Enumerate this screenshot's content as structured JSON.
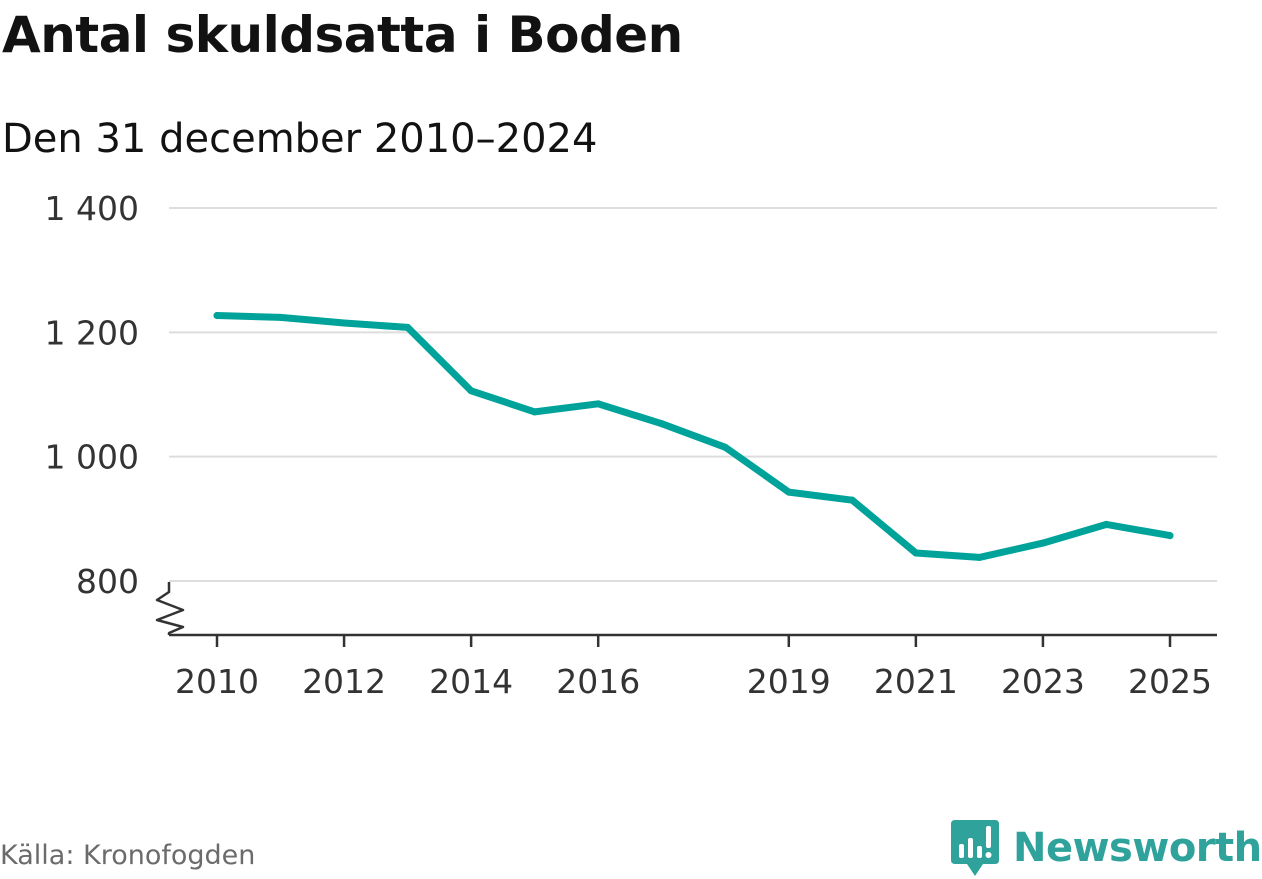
{
  "chart_data": {
    "type": "line",
    "title": "Antal skuldsatta i Boden",
    "subtitle": "Den 31 december 2010–2024",
    "source": "Källa: Kronofogden",
    "brand": "Newsworthy",
    "xlabel": "",
    "ylabel": "",
    "ylim": [
      715,
      1400
    ],
    "xlim": [
      2010,
      2025
    ],
    "y_ticks": [
      {
        "value": 800,
        "label": "800"
      },
      {
        "value": 1000,
        "label": "1 000"
      },
      {
        "value": 1200,
        "label": "1 200"
      },
      {
        "value": 1400,
        "label": "1 400"
      }
    ],
    "x_ticks": [
      {
        "value": 2010,
        "label": "2010"
      },
      {
        "value": 2012,
        "label": "2012"
      },
      {
        "value": 2014,
        "label": "2014"
      },
      {
        "value": 2016,
        "label": "2016"
      },
      {
        "value": 2019,
        "label": "2019"
      },
      {
        "value": 2021,
        "label": "2021"
      },
      {
        "value": 2023,
        "label": "2023"
      },
      {
        "value": 2025,
        "label": "2025"
      }
    ],
    "axis_break": true,
    "grid": true,
    "series": [
      {
        "name": "Antal skuldsatta",
        "color": "#00a39a",
        "x": [
          2010,
          2011,
          2012,
          2013,
          2014,
          2015,
          2016,
          2017,
          2018,
          2019,
          2020,
          2021,
          2022,
          2023,
          2024,
          2025
        ],
        "values": [
          1227,
          1224,
          1215,
          1208,
          1106,
          1072,
          1085,
          1053,
          1015,
          943,
          930,
          845,
          838,
          861,
          891,
          873
        ]
      }
    ]
  },
  "colors": {
    "line": "#00a39a",
    "grid": "#dddddd",
    "axis": "#333333",
    "brand": "#2fa39b"
  }
}
